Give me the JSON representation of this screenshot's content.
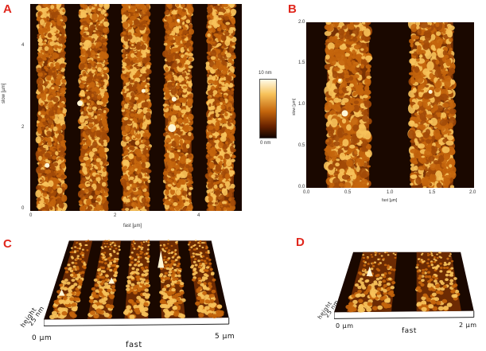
{
  "panels": {
    "a": {
      "letter": "A",
      "x_ticks": [
        "0",
        "2",
        "4"
      ],
      "y_ticks": [
        "0",
        "2",
        "4"
      ],
      "xlabel": "fast [µm]",
      "ylabel": "slow [µm]",
      "stripes": 5,
      "colorbar": {
        "max_label": "10 nm",
        "min_label": "0 nm"
      }
    },
    "b": {
      "letter": "B",
      "x_ticks": [
        "0.0",
        "0.5",
        "1.0",
        "1.5",
        "2.0"
      ],
      "y_ticks": [
        "0.0",
        "0.5",
        "1.0",
        "1.5",
        "2.0"
      ],
      "xlabel": "fast [µm]",
      "ylabel": "slow [µm]",
      "stripes": 2
    },
    "c": {
      "letter": "C",
      "x_start": "0 µm",
      "x_end": "5 µm",
      "x_axis": "fast",
      "z_label": "height",
      "z_scale": "25 nm",
      "stripes": 5
    },
    "d": {
      "letter": "D",
      "x_start": "0 µm",
      "x_end": "2 µm",
      "x_axis": "fast",
      "z_label": "height",
      "z_scale": "25 nm",
      "stripes": 2
    }
  },
  "colors": {
    "background_dark": "#1a0800",
    "stripe_mid": "#c4650c",
    "stripe_bright": "#f7c25a",
    "highlight": "#fff6d6",
    "label_red": "#e0261c"
  }
}
